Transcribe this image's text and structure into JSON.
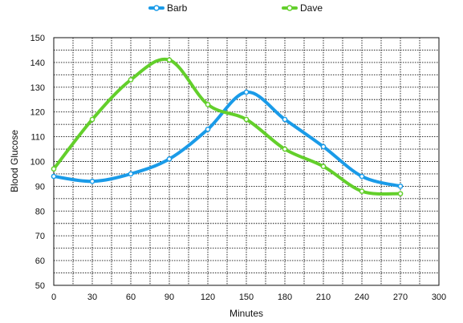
{
  "chart_data": {
    "type": "line",
    "title": "",
    "xlabel": "Minutes",
    "ylabel": "Blood Glucose",
    "xlim": [
      0,
      300
    ],
    "ylim": [
      50,
      150
    ],
    "x_ticks": [
      "0",
      "30",
      "60",
      "90",
      "120",
      "150",
      "180",
      "210",
      "240",
      "270",
      "300"
    ],
    "y_ticks": [
      "50",
      "60",
      "70",
      "80",
      "90",
      "100",
      "110",
      "120",
      "130",
      "140",
      "150"
    ],
    "grid": true,
    "legend_position": "top",
    "x": [
      0,
      30,
      60,
      90,
      120,
      150,
      180,
      210,
      240,
      270
    ],
    "series": [
      {
        "name": "Barb",
        "color": "#1a9be8",
        "values": [
          94,
          92,
          95,
          101,
          113,
          128,
          117,
          106,
          94,
          90
        ]
      },
      {
        "name": "Dave",
        "color": "#63cf2b",
        "values": [
          97,
          117,
          133,
          141,
          123,
          117,
          105,
          98,
          88,
          87
        ]
      }
    ]
  }
}
